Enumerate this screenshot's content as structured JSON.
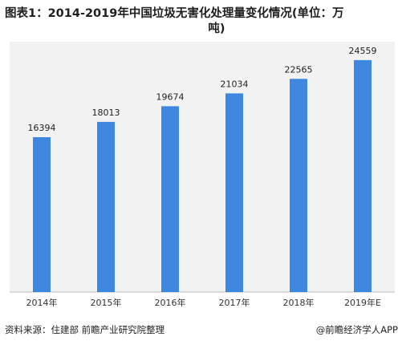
{
  "title": {
    "line1": "图表1：2014-2019年中国垃圾无害化处理量变化情况(单位：万",
    "line2": "吨)"
  },
  "chart_data": {
    "type": "bar",
    "categories": [
      "2014年",
      "2015年",
      "2016年",
      "2017年",
      "2018年",
      "2019年E"
    ],
    "values": [
      16394,
      18013,
      19674,
      21034,
      22565,
      24559
    ],
    "ylim": [
      0,
      26500
    ],
    "xlabel": "",
    "ylabel": "",
    "grid": false,
    "bar_color": "#3d87e0",
    "background": "#f2f2f2"
  },
  "footer": {
    "source": "资料来源：住建部 前瞻产业研究院整理",
    "brand": "@前瞻经济学人APP"
  }
}
